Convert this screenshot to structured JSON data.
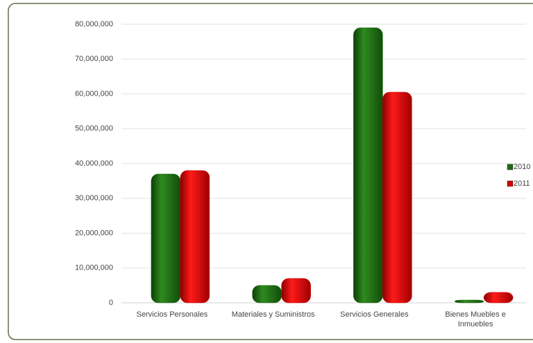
{
  "chart_data": {
    "type": "bar",
    "categories": [
      "Servicios Personales",
      "Materiales y Suministros",
      "Servicios Generales",
      "Bienes Muebles e Inmuebles"
    ],
    "series": [
      {
        "name": "2010",
        "color": "#1e6b12",
        "values": [
          37000000,
          5000000,
          79000000,
          800000
        ]
      },
      {
        "name": "2011",
        "color": "#d40000",
        "values": [
          38000000,
          7000000,
          60500000,
          3000000
        ]
      }
    ],
    "ylim": [
      0,
      80000000
    ],
    "yticks": [
      0,
      {
        "value": 10000000,
        "label": "10,000,000"
      },
      {
        "value": 20000000,
        "label": "20,000,000"
      },
      {
        "value": 30000000,
        "label": "30,000,000"
      },
      {
        "value": 40000000,
        "label": "40,000,000"
      },
      {
        "value": 50000000,
        "label": "50,000,000"
      },
      {
        "value": 60000000,
        "label": "60,000,000"
      },
      {
        "value": 70000000,
        "label": "70,000,000"
      },
      {
        "value": 80000000,
        "label": "80,000,000"
      }
    ],
    "grid": true,
    "legend": "right"
  }
}
